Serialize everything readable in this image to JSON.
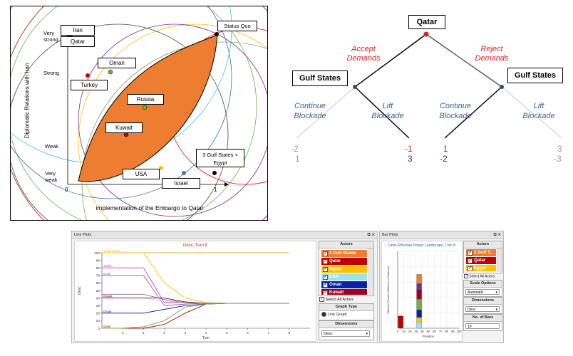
{
  "spatial_plot": {
    "ylabel": "Diplomatic Relations with Iran",
    "xlabel": "implementation of the Embargo to Qatar",
    "y_ticks": [
      "Very strong",
      "Strong",
      "Weak",
      "Very weak"
    ],
    "x_ticks": [
      "0",
      "1"
    ],
    "actors": [
      {
        "label": "Iran",
        "color": "#2e75b6"
      },
      {
        "label": "Qatar",
        "color": "#2e75b6"
      },
      {
        "label": "Oman",
        "color": "#70ad47"
      },
      {
        "label": "Turkey",
        "color": "#c00000"
      },
      {
        "label": "Russia",
        "color": "#70ad47"
      },
      {
        "label": "Kuwait",
        "color": "#c00000"
      },
      {
        "label": "Status Quo",
        "color": "#000000"
      },
      {
        "label": "3 Gulf States + Egypt",
        "color": "#000000"
      },
      {
        "label": "USA",
        "color": "#ffc000"
      },
      {
        "label": "Israel",
        "color": "#4472c4"
      }
    ],
    "winset_color": "#ed7d31"
  },
  "game_tree": {
    "root": "Qatar",
    "left_move": "Accept Demands",
    "right_move": "Reject Demands",
    "left_node": "Gulf States",
    "right_node": "Gulf States",
    "leaf_moves": [
      "Continue Blockade",
      "Lift Blockade",
      "Continue Blockade",
      "Lift Blockade"
    ],
    "payoffs": [
      {
        "a": "-2",
        "b": "1"
      },
      {
        "a": "-1",
        "b": "3"
      },
      {
        "a": "1",
        "b": "-2"
      },
      {
        "a": "3",
        "b": "-3"
      }
    ],
    "colors": {
      "move_red": "#e02020",
      "move_blue": "#3a5f8f",
      "root_dot": "#e02020",
      "node_dot": "#2f4f6f"
    }
  },
  "line_plots": {
    "panel_title": "Line Plots",
    "title": "Desc, Turn 8",
    "xlabel": "Turn",
    "ylabel": "Desc",
    "y_ticks": [
      "0",
      "10",
      "20",
      "30",
      "40",
      "50",
      "60",
      "70",
      "80",
      "90",
      "100"
    ],
    "x_ticks": [
      "0",
      "1",
      "2",
      "3",
      "4",
      "5",
      "6",
      "7",
      "8"
    ],
    "series_labels": [
      "3 Gulf States",
      "Jordan",
      "Israel",
      "Russia",
      "Kuwait",
      "Oman",
      "Qatar"
    ],
    "actors_head": "Actors",
    "actors": [
      {
        "name": "3 Gulf States",
        "color": "#ed7d31"
      },
      {
        "name": "Qatar",
        "color": "#c00000"
      },
      {
        "name": "Egypt",
        "color": "#ffc000"
      },
      {
        "name": "USA",
        "color": "#9fe3e8"
      },
      {
        "name": "Oman",
        "color": "#0b1fa8"
      },
      {
        "name": "Kuwait",
        "color": "#a0001c"
      }
    ],
    "select_all": "Select All Actors",
    "graph_type_head": "Graph Type",
    "graph_type": "Line Graph",
    "dimensions_head": "Dimensions",
    "dimension": "Desc"
  },
  "bar_plots": {
    "panel_title": "Bar Plots",
    "title": "Desc-Effective Power Landscape, Turn 8",
    "xlabel": "Position",
    "ylabel": "Effective Power (Influence x Salience)",
    "x_ticks": [
      "0",
      "10",
      "20",
      "30",
      "40",
      "50",
      "60",
      "70",
      "80",
      "90",
      "100"
    ],
    "actors_head": "Actors",
    "actors": [
      {
        "name": "3 Gulf S",
        "color": "#ed7d31"
      },
      {
        "name": "Qatar",
        "color": "#c00000"
      },
      {
        "name": "Egypt",
        "color": "#ffc000"
      }
    ],
    "select_all": "Select All Actors",
    "scale_head": "Scale Options",
    "scale": "Automatic",
    "dimensions_head": "Dimensions",
    "dimension": "Desc",
    "bars_head": "No. of Bars",
    "bars": "10"
  },
  "chart_data": [
    {
      "type": "line",
      "title": "Desc, Turn 8",
      "xlabel": "Turn",
      "ylabel": "Desc",
      "xlim": [
        -1,
        9
      ],
      "ylim": [
        0,
        100
      ],
      "x": [
        -1,
        0,
        1,
        2,
        3,
        4,
        5,
        6,
        7,
        8
      ],
      "series": [
        {
          "name": "3 Gulf States",
          "color": "#e8b24a",
          "values": [
            100,
            100,
            100,
            100,
            100,
            100,
            100,
            100,
            100,
            100
          ]
        },
        {
          "name": "Jordan",
          "color": "#d23fd2",
          "values": [
            80,
            80,
            80,
            34,
            34,
            33,
            33,
            33,
            33,
            33
          ]
        },
        {
          "name": "Israel",
          "color": "#a050a0",
          "values": [
            70,
            70,
            70,
            30,
            32,
            33,
            33,
            33,
            33,
            33
          ]
        },
        {
          "name": "Russia",
          "color": "#9fe3e8",
          "values": [
            40,
            40,
            40,
            36,
            34,
            33,
            33,
            33,
            33,
            33
          ]
        },
        {
          "name": "Kuwait",
          "color": "#a0001c",
          "values": [
            40,
            40,
            40,
            40,
            35,
            33,
            33,
            33,
            33,
            33
          ]
        },
        {
          "name": "Oman",
          "color": "#0b1fa8",
          "values": [
            20,
            20,
            20,
            25,
            30,
            32,
            33,
            33,
            33,
            33
          ]
        },
        {
          "name": "Qatar",
          "color": "#c00000",
          "values": [
            0,
            0,
            0,
            5,
            20,
            32,
            33,
            33,
            33,
            33
          ]
        },
        {
          "color": "#ffc000",
          "values": [
            100,
            100,
            100,
            60,
            40,
            34,
            33,
            33,
            33,
            33
          ]
        },
        {
          "color": "#70ad47",
          "values": [
            0,
            0,
            2,
            10,
            28,
            32,
            33,
            33,
            33,
            33
          ]
        },
        {
          "color": "#7f7f7f",
          "values": [
            45,
            45,
            45,
            38,
            34,
            33,
            33,
            33,
            33,
            33
          ]
        }
      ]
    },
    {
      "type": "bar",
      "title": "Desc-Effective Power Landscape, Turn 8",
      "xlabel": "Position",
      "ylabel": "Effective Power (Influence x Salience)",
      "xlim": [
        0,
        100
      ],
      "ylim": [
        0,
        100
      ],
      "stacks": [
        {
          "x": 5,
          "segments": [
            {
              "color": "#c00000",
              "value": 16
            }
          ]
        },
        {
          "x": 35,
          "segments": [
            {
              "color": "#9fe3e8",
              "value": 8
            },
            {
              "color": "#ffc000",
              "value": 6
            },
            {
              "color": "#0b1fa8",
              "value": 10
            },
            {
              "color": "#70ad47",
              "value": 14
            },
            {
              "color": "#a0001c",
              "value": 12
            },
            {
              "color": "#7030a0",
              "value": 8
            },
            {
              "color": "#ed7d31",
              "value": 12
            }
          ]
        }
      ]
    }
  ]
}
